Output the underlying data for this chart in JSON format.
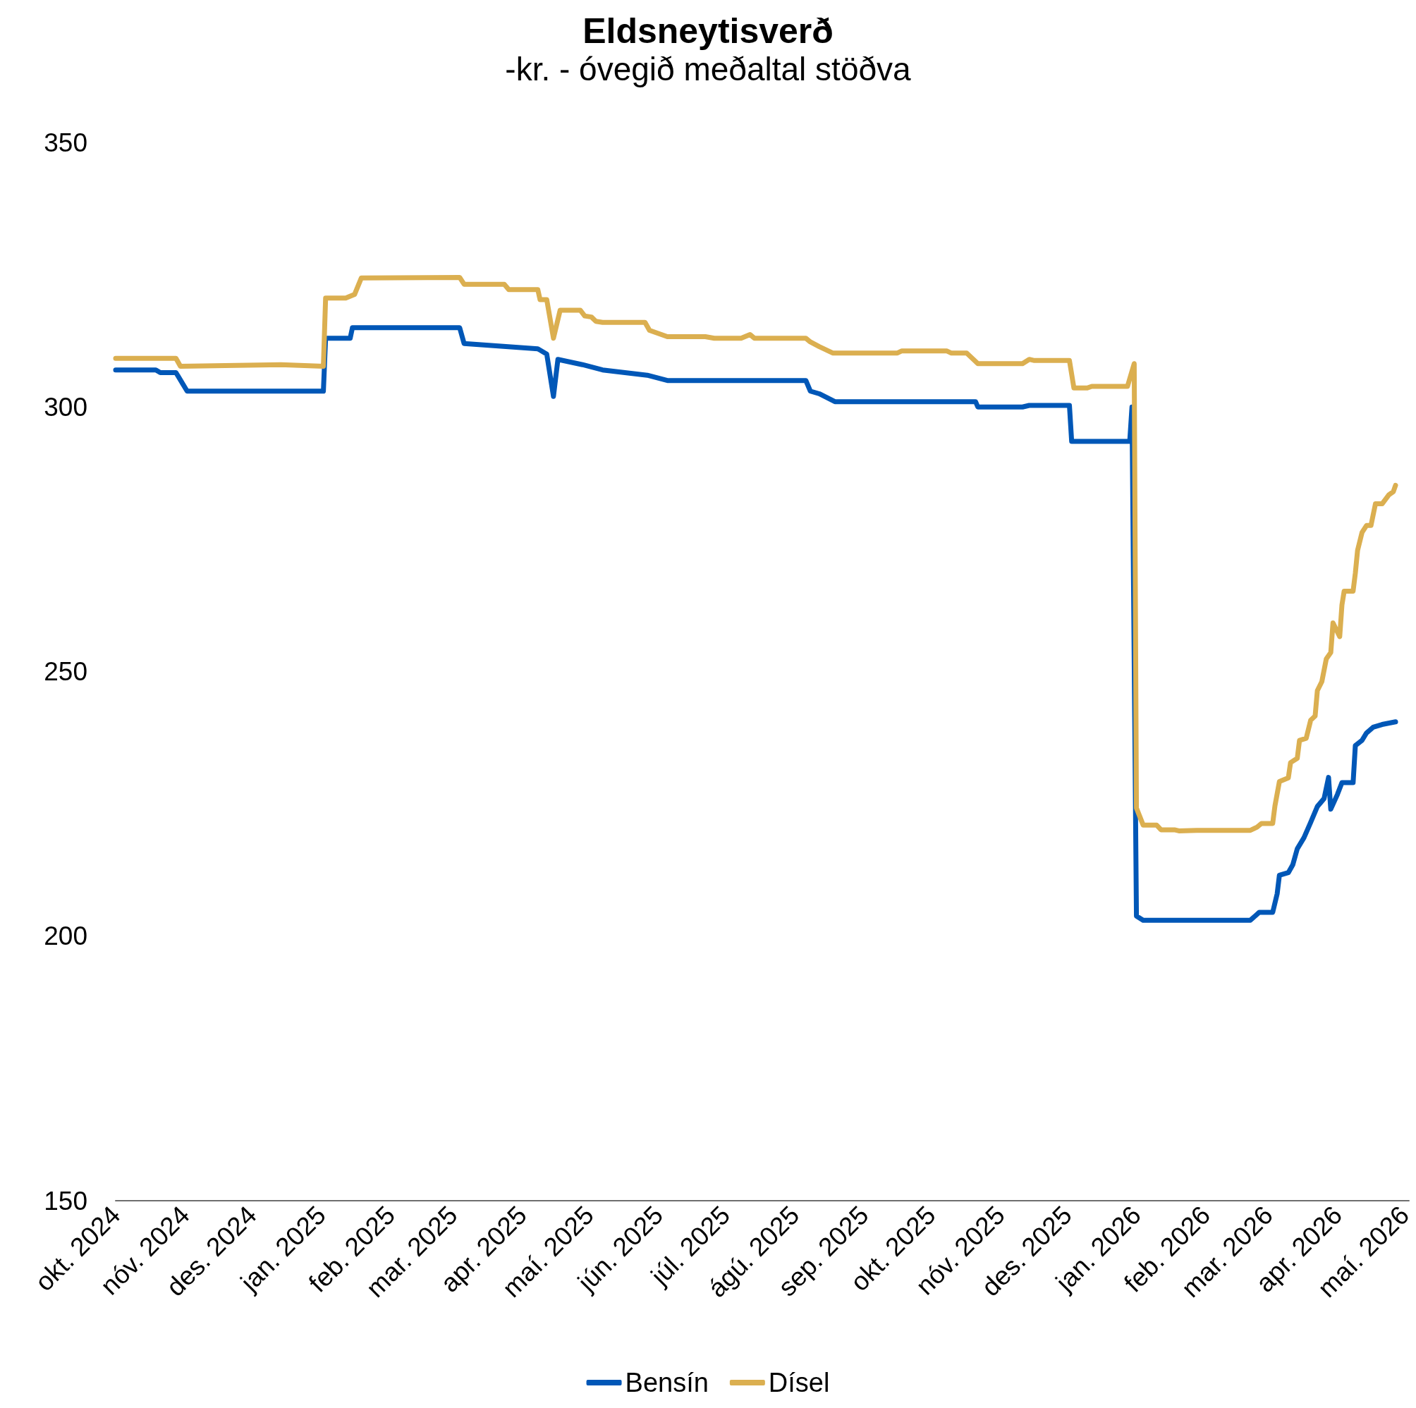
{
  "chart_data": {
    "type": "line",
    "title": "Eldsneytisverð",
    "subtitle": "-kr. - óvegið meðaltal stöðva",
    "xlim": [
      "2024-10-01",
      "2026-05-03"
    ],
    "xticks": [
      {
        "value": "2024-10-01",
        "label": "okt. 2024"
      },
      {
        "value": "2024-11-01",
        "label": "nóv. 2024"
      },
      {
        "value": "2024-12-01",
        "label": "des. 2024"
      },
      {
        "value": "2025-01-01",
        "label": "jan. 2025"
      },
      {
        "value": "2025-02-01",
        "label": "feb. 2025"
      },
      {
        "value": "2025-03-01",
        "label": "mar. 2025"
      },
      {
        "value": "2025-04-01",
        "label": "apr. 2025"
      },
      {
        "value": "2025-05-01",
        "label": "maí. 2025"
      },
      {
        "value": "2025-06-01",
        "label": "jún. 2025"
      },
      {
        "value": "2025-07-01",
        "label": "júl. 2025"
      },
      {
        "value": "2025-08-01",
        "label": "ágú. 2025"
      },
      {
        "value": "2025-09-01",
        "label": "sep. 2025"
      },
      {
        "value": "2025-10-01",
        "label": "okt. 2025"
      },
      {
        "value": "2025-11-01",
        "label": "nóv. 2025"
      },
      {
        "value": "2025-12-01",
        "label": "des. 2025"
      },
      {
        "value": "2026-01-01",
        "label": "jan. 2026"
      },
      {
        "value": "2026-02-01",
        "label": "feb. 2026"
      },
      {
        "value": "2026-03-01",
        "label": "mar. 2026"
      },
      {
        "value": "2026-04-01",
        "label": "apr. 2026"
      },
      {
        "value": "2026-05-01",
        "label": "maí. 2026"
      }
    ],
    "ylim": [
      150,
      350
    ],
    "yticks": [
      150,
      200,
      250,
      300,
      350
    ],
    "grid": false,
    "legend": "bottom",
    "marker": "none",
    "line_style": "solid",
    "series": [
      {
        "name": "Bensín",
        "color": "#0057b7",
        "x": [
          "2024-10-01",
          "2024-10-19",
          "2024-10-21",
          "2024-10-28",
          "2024-11-02",
          "2025-01-02",
          "2025-01-03",
          "2025-01-14",
          "2025-01-15",
          "2025-03-04",
          "2025-03-06",
          "2025-04-08",
          "2025-04-12",
          "2025-04-15",
          "2025-04-17",
          "2025-04-28",
          "2025-05-07",
          "2025-05-27",
          "2025-06-05",
          "2025-08-06",
          "2025-08-08",
          "2025-08-12",
          "2025-08-19",
          "2025-10-21",
          "2025-10-22",
          "2025-11-11",
          "2025-11-14",
          "2025-12-02",
          "2025-12-03",
          "2025-12-29",
          "2025-12-30",
          "2026-01-01",
          "2026-01-04",
          "2026-02-21",
          "2026-02-25",
          "2026-03-03",
          "2026-03-05",
          "2026-03-06",
          "2026-03-10",
          "2026-03-12",
          "2026-03-14",
          "2026-03-17",
          "2026-03-20",
          "2026-03-23",
          "2026-03-26",
          "2026-03-28",
          "2026-03-29",
          "2026-04-01",
          "2026-04-03",
          "2026-04-08",
          "2026-04-09",
          "2026-04-12",
          "2026-04-14",
          "2026-04-17",
          "2026-04-21",
          "2026-04-27"
        ],
        "values": [
          307,
          307,
          306.5,
          306.5,
          303,
          303,
          313,
          313,
          315,
          315,
          312,
          311,
          310,
          302,
          309,
          308,
          307,
          306,
          305,
          305,
          303,
          302.5,
          301,
          301,
          300,
          300,
          300.3,
          300.3,
          293.5,
          293.5,
          300,
          203.8,
          203,
          203,
          204.5,
          204.5,
          208,
          211.5,
          212,
          213.5,
          216.5,
          218.6,
          221.5,
          224.5,
          226,
          230,
          224,
          226.8,
          229,
          229,
          236,
          237,
          238.4,
          239.5,
          240,
          240.5
        ]
      },
      {
        "name": "Dísel",
        "color": "#dbaf50",
        "x": [
          "2024-10-01",
          "2024-10-28",
          "2024-10-30",
          "2024-12-14",
          "2025-01-02",
          "2025-01-03",
          "2025-01-12",
          "2025-01-16",
          "2025-01-19",
          "2025-03-04",
          "2025-03-06",
          "2025-03-24",
          "2025-03-26",
          "2025-04-08",
          "2025-04-09",
          "2025-04-12",
          "2025-04-15",
          "2025-04-18",
          "2025-04-27",
          "2025-04-29",
          "2025-05-02",
          "2025-05-04",
          "2025-05-07",
          "2025-05-26",
          "2025-05-28",
          "2025-06-05",
          "2025-06-22",
          "2025-06-26",
          "2025-07-08",
          "2025-07-12",
          "2025-07-14",
          "2025-08-06",
          "2025-08-08",
          "2025-08-12",
          "2025-08-18",
          "2025-09-16",
          "2025-09-18",
          "2025-10-08",
          "2025-10-10",
          "2025-10-17",
          "2025-10-19",
          "2025-10-22",
          "2025-11-11",
          "2025-11-14",
          "2025-11-16",
          "2025-12-02",
          "2025-12-04",
          "2025-12-10",
          "2025-12-12",
          "2025-12-28",
          "2025-12-31",
          "2026-01-01",
          "2026-01-04",
          "2026-01-10",
          "2026-01-12",
          "2026-01-18",
          "2026-01-20",
          "2026-01-28",
          "2026-02-21",
          "2026-02-24",
          "2026-02-26",
          "2026-03-03",
          "2026-03-04",
          "2026-03-06",
          "2026-03-10",
          "2026-03-11",
          "2026-03-14",
          "2026-03-15",
          "2026-03-18",
          "2026-03-20",
          "2026-03-22",
          "2026-03-23",
          "2026-03-25",
          "2026-03-27",
          "2026-03-29",
          "2026-03-30",
          "2026-04-02",
          "2026-04-03",
          "2026-04-04",
          "2026-04-08",
          "2026-04-09",
          "2026-04-10",
          "2026-04-12",
          "2026-04-14",
          "2026-04-16",
          "2026-04-18",
          "2026-04-21",
          "2026-04-24",
          "2026-04-26",
          "2026-04-27"
        ],
        "values": [
          309.2,
          309.2,
          307.7,
          308,
          307.7,
          320.6,
          320.6,
          321.3,
          324.4,
          324.5,
          323.2,
          323.2,
          322.2,
          322.2,
          320.3,
          320.3,
          313,
          318.3,
          318.3,
          317.2,
          317,
          316.2,
          316,
          316,
          314.5,
          313.3,
          313.3,
          313,
          313,
          313.7,
          313,
          313,
          312.3,
          311.4,
          310.2,
          310.2,
          310.6,
          310.6,
          310.2,
          310.2,
          309.4,
          308.2,
          308.2,
          309,
          308.8,
          308.8,
          303.6,
          303.6,
          303.9,
          303.9,
          308.2,
          224.2,
          221,
          221,
          220.1,
          220.1,
          219.9,
          220,
          220,
          220.6,
          221.3,
          221.3,
          224.6,
          229.2,
          229.9,
          232.8,
          233.6,
          237,
          237.4,
          240.8,
          241.6,
          246.4,
          248.1,
          252.4,
          253.6,
          259.2,
          256.6,
          262.6,
          265.2,
          265.2,
          268.6,
          272.9,
          276.3,
          277.6,
          277.6,
          281.7,
          281.7,
          283.4,
          284,
          285.2
        ]
      }
    ]
  }
}
